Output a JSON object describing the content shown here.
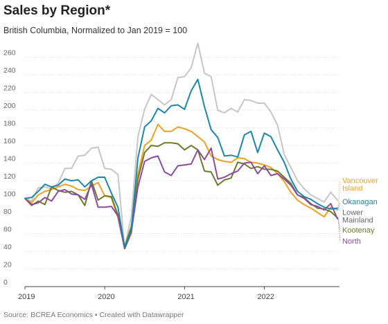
{
  "header": {
    "title": "Sales by Region*",
    "subtitle": "British Columbia, Normalized to Jan 2019 = 100"
  },
  "footer": {
    "source": "Source: BCREA Economics • Created with Datawrapper"
  },
  "chart_data": {
    "type": "line",
    "title": "Sales by Region*",
    "subtitle": "British Columbia, Normalized to Jan 2019 = 100",
    "xlabel": "",
    "ylabel": "",
    "ylim": [
      0,
      270
    ],
    "yticks": [
      0,
      20,
      40,
      60,
      80,
      100,
      120,
      140,
      160,
      180,
      200,
      220,
      240,
      260
    ],
    "xticks": [
      "2019",
      "2020",
      "2021",
      "2022"
    ],
    "x_start": "2019-01",
    "x_end": "2022-12",
    "grid": true,
    "legend": "direct labels at right",
    "series": [
      {
        "name": "Vancouver Island",
        "color": "#f0a020",
        "values": [
          100,
          95,
          104,
          108,
          110,
          113,
          116,
          114,
          110,
          109,
          114,
          118,
          103,
          101,
          78,
          43,
          60,
          128,
          160,
          166,
          184,
          176,
          176,
          181,
          179,
          176,
          170,
          164,
          148,
          144,
          142,
          141,
          146,
          145,
          141,
          140,
          138,
          135,
          128,
          119,
          107,
          98,
          93,
          89,
          84,
          79,
          90,
          87
        ]
      },
      {
        "name": "Okanagan",
        "color": "#1a86b0",
        "values": [
          100,
          101,
          108,
          116,
          113,
          115,
          122,
          120,
          121,
          113,
          120,
          124,
          124,
          106,
          90,
          44,
          64,
          146,
          181,
          188,
          202,
          197,
          205,
          206,
          201,
          222,
          235,
          204,
          178,
          169,
          148,
          149,
          147,
          172,
          176,
          152,
          174,
          170,
          155,
          141,
          122,
          108,
          102,
          99,
          94,
          90,
          88,
          89
        ]
      },
      {
        "name": "Lower Mainland",
        "color": "#c6c6c6",
        "values": [
          100,
          97,
          112,
          113,
          111,
          117,
          134,
          134,
          148,
          149,
          157,
          158,
          134,
          133,
          127,
          44,
          80,
          170,
          201,
          218,
          212,
          206,
          212,
          237,
          238,
          248,
          276,
          242,
          238,
          200,
          197,
          202,
          198,
          212,
          211,
          208,
          208,
          198,
          183,
          150,
          135,
          120,
          111,
          104,
          100,
          96,
          107,
          98
        ]
      },
      {
        "name": "Kootenay",
        "color": "#6b7a2a",
        "values": [
          100,
          92,
          97,
          93,
          113,
          109,
          107,
          108,
          104,
          92,
          120,
          98,
          103,
          102,
          81,
          45,
          68,
          122,
          152,
          160,
          159,
          163,
          163,
          162,
          155,
          160,
          155,
          131,
          130,
          115,
          121,
          123,
          141,
          139,
          134,
          136,
          133,
          133,
          131,
          124,
          117,
          104,
          101,
          94,
          89,
          88,
          85,
          78
        ]
      },
      {
        "name": "North",
        "color": "#8c4aa0",
        "values": [
          100,
          93,
          95,
          101,
          97,
          108,
          110,
          105,
          104,
          99,
          116,
          90,
          90,
          91,
          80,
          43,
          62,
          113,
          142,
          146,
          148,
          130,
          126,
          137,
          138,
          139,
          155,
          144,
          157,
          122,
          124,
          128,
          131,
          140,
          141,
          128,
          137,
          126,
          128,
          122,
          115,
          104,
          100,
          93,
          91,
          87,
          94,
          77
        ]
      }
    ]
  }
}
